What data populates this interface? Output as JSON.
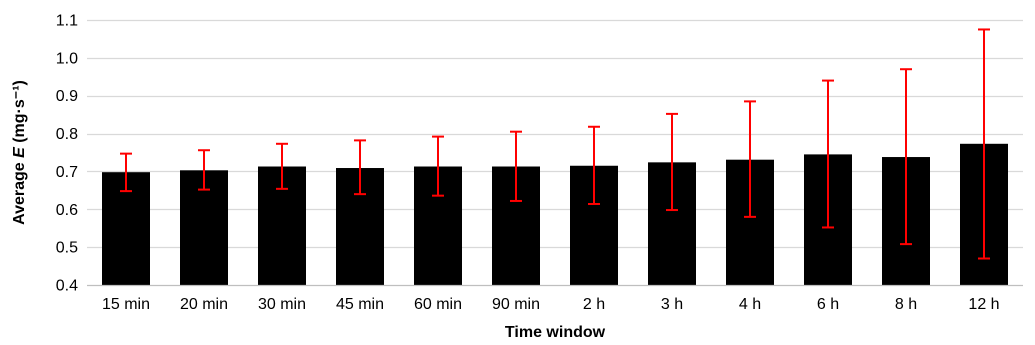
{
  "chart_data": {
    "type": "bar",
    "title": "",
    "xlabel": "Time window",
    "ylabel": {
      "prefix": "Average ",
      "symbol": "E",
      "unit": " (mg·s⁻¹)"
    },
    "categories": [
      "15 min",
      "20 min",
      "30 min",
      "45 min",
      "60 min",
      "90 min",
      "2 h",
      "3 h",
      "4 h",
      "6 h",
      "8 h",
      "12 h"
    ],
    "values": [
      0.698,
      0.703,
      0.713,
      0.709,
      0.713,
      0.713,
      0.715,
      0.724,
      0.731,
      0.745,
      0.738,
      0.773
    ],
    "error_bars": {
      "upper": [
        0.747,
        0.756,
        0.773,
        0.782,
        0.792,
        0.805,
        0.818,
        0.852,
        0.885,
        0.94,
        0.97,
        1.075
      ],
      "lower": [
        0.648,
        0.652,
        0.654,
        0.64,
        0.636,
        0.622,
        0.614,
        0.598,
        0.58,
        0.552,
        0.508,
        0.47
      ]
    },
    "ylim": [
      0.4,
      1.1
    ],
    "yticks": [
      0.4,
      0.5,
      0.6,
      0.7,
      0.8,
      0.9,
      1.0,
      1.1
    ],
    "ytick_labels": [
      "0.4",
      "0.5",
      "0.6",
      "0.7",
      "0.8",
      "0.9",
      "1.0",
      "1.1"
    ],
    "grid": true,
    "legend": "none",
    "colors": {
      "bar": "#000000",
      "error_bar": "#ff0000",
      "grid": "#d9d9d9",
      "axis": "#bfbfbf"
    }
  }
}
